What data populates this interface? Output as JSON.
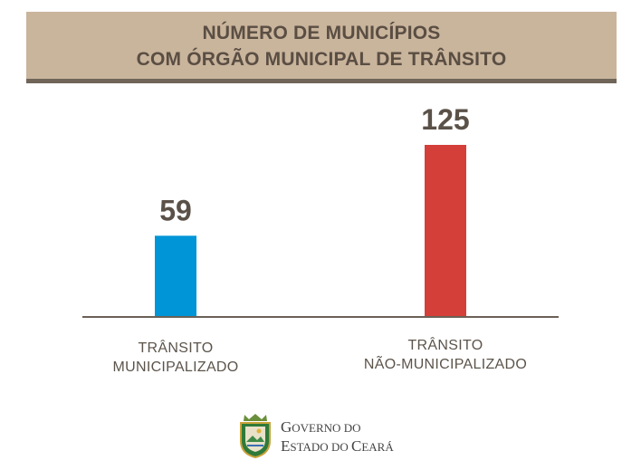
{
  "header": {
    "title_line1": "NÚMERO DE MUNICÍPIOS",
    "title_line2": "COM ÓRGÃO MUNICIPAL DE TRÂNSITO"
  },
  "chart_data": {
    "type": "bar",
    "title": "NÚMERO DE MUNICÍPIOS COM ÓRGÃO MUNICIPAL DE TRÂNSITO",
    "categories": [
      [
        "TRÂNSITO",
        "MUNICIPALIZADO"
      ],
      [
        "TRÂNSITO",
        "NÃO-MUNICIPALIZADO"
      ]
    ],
    "values": [
      59,
      125
    ],
    "data_labels": [
      "59",
      "125"
    ],
    "colors": [
      "#0095d6",
      "#d43f3a"
    ],
    "ylim": [
      0,
      125
    ],
    "grid": false,
    "legend": "none"
  },
  "footer": {
    "logo_icon": "ceara-coat-of-arms-icon",
    "line1_big1": "G",
    "line1_small1": "OVERNO ",
    "line1_small2": "DO",
    "line2_big1": "E",
    "line2_small1": "STADO ",
    "line2_small2": "DO ",
    "line2_big2": "C",
    "line2_small3": "EARÁ"
  }
}
